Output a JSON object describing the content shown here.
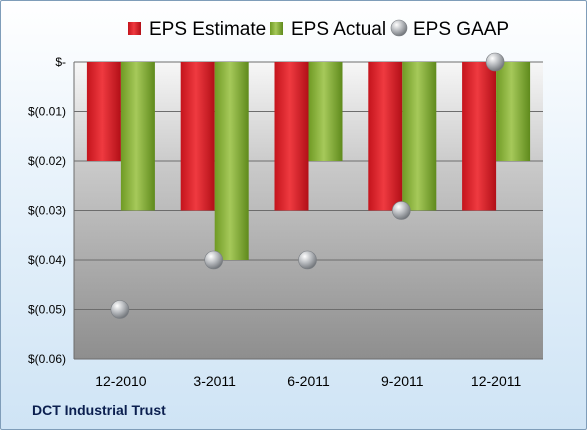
{
  "chart_data": {
    "type": "bar",
    "categories": [
      "12-2010",
      "3-2011",
      "6-2011",
      "9-2011",
      "12-2011"
    ],
    "series": [
      {
        "name": "EPS Estimate",
        "kind": "bar",
        "color": "#e8212b",
        "values": [
          -0.02,
          -0.03,
          -0.03,
          -0.03,
          -0.03
        ]
      },
      {
        "name": "EPS Actual",
        "kind": "bar",
        "color": "#8db53b",
        "values": [
          -0.03,
          -0.04,
          -0.02,
          -0.03,
          -0.02
        ]
      },
      {
        "name": "EPS GAAP",
        "kind": "marker",
        "color": "#b8bcc2",
        "values": [
          -0.05,
          -0.04,
          -0.04,
          -0.03,
          0.0
        ]
      }
    ],
    "y_ticks": [
      "$-",
      "$(0.01)",
      "$(0.02)",
      "$(0.03)",
      "$(0.04)",
      "$(0.05)",
      "$(0.06)"
    ],
    "ylim": [
      -0.06,
      0
    ],
    "grid": true,
    "legend_position": "top"
  },
  "footer": {
    "company": "DCT Industrial Trust"
  }
}
